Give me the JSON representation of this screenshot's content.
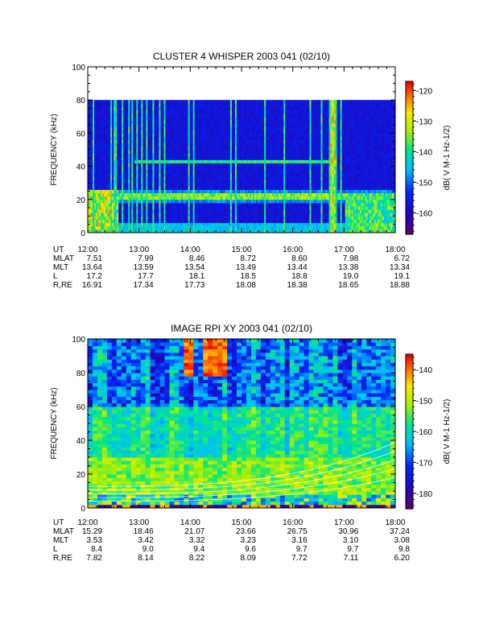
{
  "chart_data": [
    {
      "type": "heatmap",
      "title": "CLUSTER 4 WHISPER 2003 041 (02/10)",
      "ylabel": "FREQUENCY (kHz)",
      "ylim": [
        0,
        100
      ],
      "yticks": [
        "0",
        "20",
        "40",
        "60",
        "80",
        "100"
      ],
      "data_ymax": 80,
      "colorbar": {
        "ticks": [
          "-120",
          "-130",
          "-140",
          "-150",
          "-160"
        ],
        "range": [
          -167,
          -117
        ]
      },
      "colorbar_label": "dB( V M-1 Hz-1/2)",
      "ephemeris": {
        "labels": [
          "UT",
          "MLAT",
          "MLT",
          "L",
          "R,RE"
        ],
        "columns": [
          [
            "12:00",
            "7.51",
            "13.64",
            "17.2",
            "16.91"
          ],
          [
            "13:00",
            "7.99",
            "13.59",
            "17.7",
            "17.34"
          ],
          [
            "14:00",
            "8.46",
            "13.54",
            "18.1",
            "17.73"
          ],
          [
            "15:00",
            "8.72",
            "13.49",
            "18.5",
            "18.08"
          ],
          [
            "16:00",
            "8.60",
            "13.44",
            "18.8",
            "18.38"
          ],
          [
            "17:00",
            "7.98",
            "13.38",
            "19.0",
            "18.65"
          ],
          [
            "18:00",
            "6.72",
            "13.34",
            "19.1",
            "18.88"
          ]
        ]
      }
    },
    {
      "type": "heatmap",
      "title": "IMAGE RPI XY 2003 041 (02/10)",
      "ylabel": "FREQUENCY (kHz)",
      "ylim": [
        0,
        100
      ],
      "yticks": [
        "0",
        "20",
        "40",
        "60",
        "80",
        "100"
      ],
      "data_ymax": 100,
      "colorbar": {
        "ticks": [
          "-140",
          "-150",
          "-160",
          "-170",
          "-180"
        ],
        "range": [
          -185,
          -135
        ]
      },
      "colorbar_label": "dB( V M-1 Hz-1/2)",
      "ephemeris": {
        "labels": [
          "UT",
          "MLAT",
          "MLT",
          "L",
          "R,RE"
        ],
        "columns": [
          [
            "12:00",
            "15.29",
            "3.53",
            "8.4",
            "7.82"
          ],
          [
            "13:00",
            "18.46",
            "3.42",
            "9.0",
            "8.14"
          ],
          [
            "14:00",
            "21.07",
            "3.32",
            "9.4",
            "8.22"
          ],
          [
            "15:00",
            "23.66",
            "3.23",
            "9.6",
            "8.09"
          ],
          [
            "16:00",
            "26.75",
            "3.16",
            "9.7",
            "7.72"
          ],
          [
            "17:00",
            "30.96",
            "3.10",
            "9.7",
            "7.11"
          ],
          [
            "18:00",
            "37.24",
            "3.08",
            "9.8",
            "6.20"
          ]
        ]
      }
    }
  ]
}
